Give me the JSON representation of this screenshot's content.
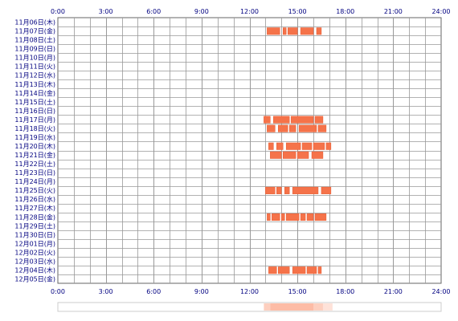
{
  "chart_data": {
    "type": "timeline",
    "x_ticks": [
      "0:00",
      "3:00",
      "6:00",
      "9:00",
      "12:00",
      "15:00",
      "18:00",
      "21:00",
      "24:00"
    ],
    "x_range_hours": [
      0,
      24
    ],
    "grid": true,
    "rows": [
      {
        "label": "11月06日(木)",
        "segments": []
      },
      {
        "label": "11月07日(金)",
        "segments": [
          [
            13.1,
            13.9
          ],
          [
            14.1,
            14.3
          ],
          [
            14.4,
            15.0
          ],
          [
            15.2,
            16.0
          ],
          [
            16.2,
            16.5
          ]
        ]
      },
      {
        "label": "11月08日(土)",
        "segments": []
      },
      {
        "label": "11月09日(日)",
        "segments": []
      },
      {
        "label": "11月10日(月)",
        "segments": []
      },
      {
        "label": "11月11日(火)",
        "segments": []
      },
      {
        "label": "11月12日(水)",
        "segments": []
      },
      {
        "label": "11月13日(木)",
        "segments": []
      },
      {
        "label": "11月14日(金)",
        "segments": []
      },
      {
        "label": "11月15日(土)",
        "segments": []
      },
      {
        "label": "11月16日(日)",
        "segments": []
      },
      {
        "label": "11月17日(月)",
        "segments": [
          [
            12.9,
            13.3
          ],
          [
            13.5,
            14.5
          ],
          [
            14.6,
            16.0
          ],
          [
            16.1,
            16.6
          ]
        ]
      },
      {
        "label": "11月18日(火)",
        "segments": [
          [
            13.1,
            13.6
          ],
          [
            13.8,
            14.4
          ],
          [
            14.5,
            14.9
          ],
          [
            15.1,
            16.2
          ],
          [
            16.3,
            16.8
          ]
        ]
      },
      {
        "label": "11月19日(水)",
        "segments": []
      },
      {
        "label": "11月20日(木)",
        "segments": [
          [
            13.2,
            13.5
          ],
          [
            13.7,
            14.1
          ],
          [
            14.3,
            15.2
          ],
          [
            15.3,
            15.9
          ],
          [
            16.0,
            16.7
          ],
          [
            16.8,
            17.1
          ]
        ]
      },
      {
        "label": "11月21日(金)",
        "segments": [
          [
            13.3,
            14.0
          ],
          [
            14.1,
            14.9
          ],
          [
            15.0,
            15.7
          ],
          [
            15.9,
            16.6
          ]
        ]
      },
      {
        "label": "11月22日(土)",
        "segments": []
      },
      {
        "label": "11月23日(日)",
        "segments": []
      },
      {
        "label": "11月24日(月)",
        "segments": []
      },
      {
        "label": "11月25日(火)",
        "segments": [
          [
            13.0,
            13.6
          ],
          [
            13.7,
            14.0
          ],
          [
            14.2,
            14.5
          ],
          [
            14.7,
            16.3
          ],
          [
            16.5,
            17.1
          ]
        ]
      },
      {
        "label": "11月26日(水)",
        "segments": []
      },
      {
        "label": "11月27日(木)",
        "segments": []
      },
      {
        "label": "11月28日(金)",
        "segments": [
          [
            13.1,
            13.3
          ],
          [
            13.4,
            13.9
          ],
          [
            14.0,
            14.2
          ],
          [
            14.3,
            15.1
          ],
          [
            15.2,
            15.5
          ],
          [
            15.6,
            16.0
          ],
          [
            16.1,
            16.8
          ]
        ]
      },
      {
        "label": "11月29日(土)",
        "segments": []
      },
      {
        "label": "11月30日(日)",
        "segments": []
      },
      {
        "label": "12月01日(月)",
        "segments": []
      },
      {
        "label": "12月02日(火)",
        "segments": []
      },
      {
        "label": "12月03日(水)",
        "segments": []
      },
      {
        "label": "12月04日(木)",
        "segments": [
          [
            13.2,
            13.7
          ],
          [
            13.8,
            14.5
          ],
          [
            14.7,
            15.5
          ],
          [
            15.6,
            16.2
          ],
          [
            16.3,
            16.5
          ]
        ]
      },
      {
        "label": "12月05日(金)",
        "segments": []
      }
    ],
    "summary_bar": {
      "segments": [
        [
          12.9,
          13.3,
          0.5
        ],
        [
          13.3,
          16.0,
          0.7
        ],
        [
          16.0,
          16.6,
          0.5
        ],
        [
          16.6,
          17.2,
          0.3
        ]
      ]
    },
    "colors": {
      "segment": "#f5734a",
      "segment_dark": "#e85a30",
      "grid": "#999999",
      "border": "#666666",
      "axis_text": "#000080",
      "summary_fill": "#fca080",
      "summary_border": "#cccccc"
    }
  }
}
